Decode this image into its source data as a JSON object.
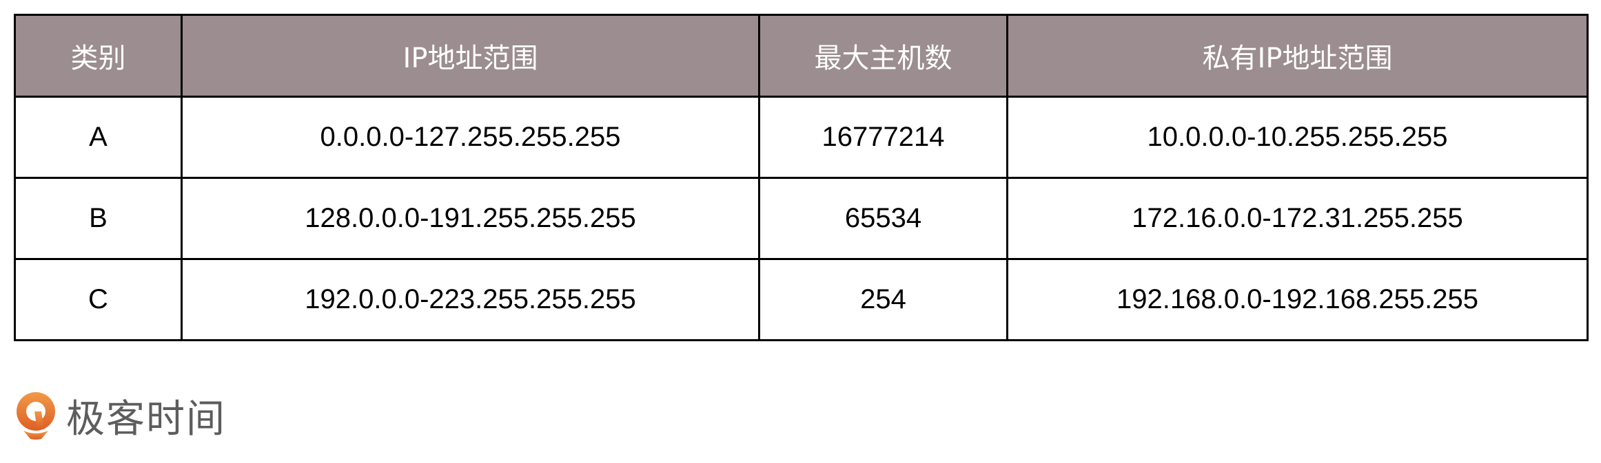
{
  "table": {
    "headers": [
      "类别",
      "IP地址范围",
      "最大主机数",
      "私有IP地址范围"
    ],
    "header_color": "#9b8d90",
    "rows": [
      [
        "A",
        "0.0.0.0-127.255.255.255",
        "16777214",
        "10.0.0.0-10.255.255.255"
      ],
      [
        "B",
        "128.0.0.0-191.255.255.255",
        "65534",
        "172.16.0.0-172.31.255.255"
      ],
      [
        "C",
        "192.0.0.0-223.255.255.255",
        "254",
        "192.168.0.0-192.168.255.255"
      ]
    ]
  },
  "logo": {
    "text": "极客时间",
    "icon": "geektime-logo-icon",
    "color": "#e8742e"
  }
}
